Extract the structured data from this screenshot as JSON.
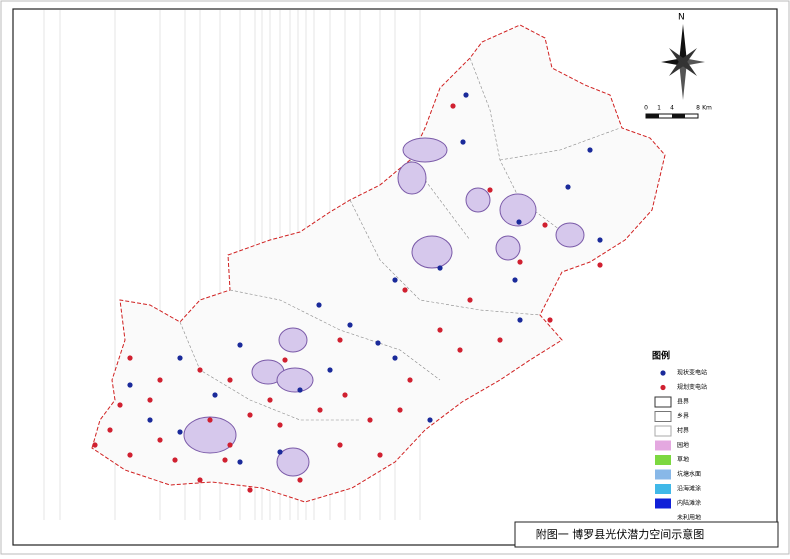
{
  "map": {
    "caption": "附图一  博罗县光伏潜力空间示意图",
    "compass": "N",
    "scale_labels": [
      "0",
      "1",
      "4",
      "8",
      "Km"
    ],
    "legend": {
      "title": "图例",
      "items": [
        {
          "label": "现状变电站"
        },
        {
          "label": "规划变电站"
        },
        {
          "label": "县界"
        },
        {
          "label": "乡界"
        },
        {
          "label": "村界"
        },
        {
          "label": "园地"
        },
        {
          "label": "草地"
        },
        {
          "label": "坑塘水面"
        },
        {
          "label": "沿海滩涂"
        },
        {
          "label": "内陆滩涂"
        },
        {
          "label": "未利用地"
        }
      ]
    }
  }
}
